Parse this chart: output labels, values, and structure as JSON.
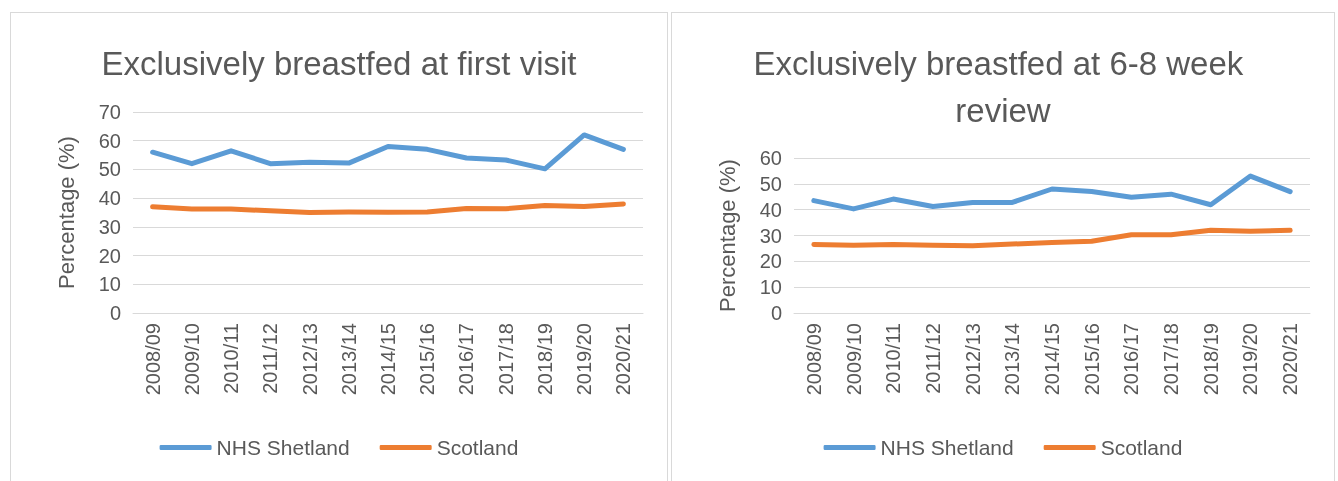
{
  "chart_data": [
    {
      "type": "line",
      "title": "Exclusively breastfed at first visit",
      "ylabel": "Percentage (%)",
      "categories": [
        "2008/09",
        "2009/10",
        "2010/11",
        "2011/12",
        "2012/13",
        "2013/14",
        "2014/15",
        "2015/16",
        "2016/17",
        "2017/18",
        "2018/19",
        "2019/20",
        "2020/21"
      ],
      "series": [
        {
          "name": "NHS Shetland",
          "color": "#5b9bd5",
          "values": [
            56,
            52,
            56.5,
            52,
            52.5,
            52.2,
            58,
            57,
            54,
            53.3,
            50.2,
            62,
            57
          ]
        },
        {
          "name": "Scotland",
          "color": "#ed7d31",
          "values": [
            37,
            36.2,
            36.2,
            35.6,
            35,
            35.2,
            35.1,
            35.2,
            36.4,
            36.3,
            37.4,
            37.1,
            38
          ]
        }
      ],
      "ylim": [
        0,
        70
      ],
      "yticks": [
        0,
        10,
        20,
        30,
        40,
        50,
        60,
        70
      ],
      "grid": "y",
      "legend": "bottom",
      "marker": "none",
      "line_style": "solid"
    },
    {
      "type": "line",
      "title": "Exclusively breastfed at 6-8 week review",
      "ylabel": "Percentage (%)",
      "categories": [
        "2008/09",
        "2009/10",
        "2010/11",
        "2011/12",
        "2012/13",
        "2013/14",
        "2014/15",
        "2015/16",
        "2016/17",
        "2017/18",
        "2018/19",
        "2019/20",
        "2020/21"
      ],
      "series": [
        {
          "name": "NHS Shetland",
          "color": "#5b9bd5",
          "values": [
            43.5,
            40.3,
            44.1,
            41.2,
            42.8,
            42.8,
            48,
            47,
            44.8,
            46,
            41.9,
            53,
            47
          ]
        },
        {
          "name": "Scotland",
          "color": "#ed7d31",
          "values": [
            26.5,
            26.2,
            26.5,
            26.2,
            26,
            26.7,
            27.3,
            27.8,
            30.3,
            30.3,
            32,
            31.6,
            32
          ]
        }
      ],
      "ylim": [
        0,
        60
      ],
      "yticks": [
        0,
        10,
        20,
        30,
        40,
        50,
        60
      ],
      "grid": "y",
      "legend": "bottom",
      "marker": "none",
      "line_style": "solid"
    }
  ]
}
